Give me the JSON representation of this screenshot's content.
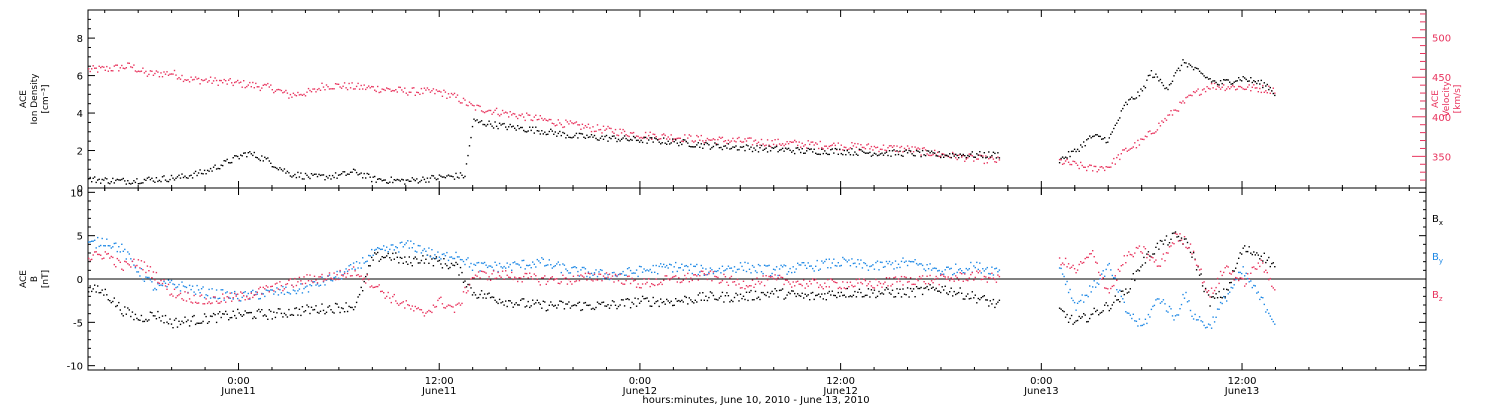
{
  "colors": {
    "axis": "#000000",
    "velocity": "#e8345e",
    "bx": "#000000",
    "by": "#1e88e5",
    "bz": "#e8345e"
  },
  "xlabel": "hours:minutes, June 10, 2010 - June 13, 2010",
  "x_ticks": [
    {
      "hour": 24,
      "time": "0:00",
      "day": "June11"
    },
    {
      "hour": 36,
      "time": "12:00",
      "day": "June11"
    },
    {
      "hour": 48,
      "time": "0:00",
      "day": "June12"
    },
    {
      "hour": 60,
      "time": "12:00",
      "day": "June12"
    },
    {
      "hour": 72,
      "time": "0:00",
      "day": "June13"
    },
    {
      "hour": 84,
      "time": "12:00",
      "day": "June13"
    }
  ],
  "chart_data": [
    {
      "type": "scatter",
      "x_unit": "hours since 2010-06-10 00:00",
      "xlim": [
        15,
        95
      ],
      "left_axis": {
        "label_lines": [
          "ACE",
          "Ion Density",
          "[cm⁻³]"
        ],
        "ylim": [
          0,
          9.5
        ],
        "ticks": [
          0,
          2,
          4,
          6,
          8
        ]
      },
      "right_axis": {
        "label_lines": [
          "ACE",
          "Velocity",
          "[km/s]"
        ],
        "ylim": [
          310,
          535
        ],
        "ticks": [
          350,
          400,
          450,
          500
        ]
      },
      "gap": [
        69.5,
        73.0
      ],
      "series": [
        {
          "key": "density",
          "axis": "left",
          "color_key": "bx",
          "x": [
            15.0,
            17.0,
            19.0,
            20.5,
            22.0,
            23.5,
            24.5,
            25.5,
            27.0,
            28.5,
            30.0,
            31.0,
            32.0,
            34.0,
            36.0,
            37.5,
            38.0,
            40.0,
            42.0,
            44.0,
            46.0,
            48.0,
            50.0,
            52.0,
            54.0,
            56.0,
            58.0,
            60.0,
            62.0,
            64.0,
            66.0,
            68.0,
            69.5,
            73.0,
            74.0,
            75.0,
            76.0,
            77.0,
            78.0,
            78.5,
            79.5,
            80.5,
            81.5,
            82.5,
            84.0,
            85.5,
            86.0
          ],
          "y": [
            0.5,
            0.4,
            0.5,
            0.6,
            0.9,
            1.5,
            1.9,
            1.6,
            0.8,
            0.6,
            0.7,
            0.9,
            0.5,
            0.4,
            0.6,
            0.7,
            3.6,
            3.3,
            3.1,
            2.8,
            2.7,
            2.6,
            2.5,
            2.3,
            2.2,
            2.1,
            2.0,
            2.0,
            1.9,
            1.9,
            1.8,
            1.8,
            1.8,
            1.5,
            2.0,
            2.8,
            2.6,
            4.5,
            5.2,
            6.2,
            5.4,
            6.8,
            6.1,
            5.6,
            5.9,
            5.5,
            5.0
          ]
        },
        {
          "key": "velocity",
          "axis": "right",
          "color_key": "velocity",
          "x": [
            15.0,
            16.5,
            17.5,
            18.5,
            20.0,
            21.0,
            22.0,
            24.0,
            26.0,
            27.0,
            28.5,
            29.0,
            30.0,
            32.0,
            34.0,
            36.0,
            37.0,
            38.0,
            40.0,
            44.0,
            48.0,
            52.0,
            56.0,
            60.0,
            64.0,
            66.0,
            68.0,
            69.5,
            73.0,
            74.0,
            75.0,
            76.0,
            77.0,
            78.0,
            79.0,
            80.0,
            81.0,
            82.0,
            84.0,
            86.0
          ],
          "y": [
            460,
            462,
            465,
            455,
            456,
            448,
            447,
            443,
            437,
            428,
            433,
            440,
            440,
            437,
            433,
            432,
            425,
            413,
            405,
            390,
            378,
            372,
            368,
            364,
            360,
            353,
            348,
            345,
            345,
            340,
            335,
            338,
            358,
            370,
            390,
            410,
            428,
            440,
            438,
            435
          ]
        }
      ]
    },
    {
      "type": "scatter",
      "x_unit": "hours since 2010-06-10 00:00",
      "xlim": [
        15,
        95
      ],
      "ylabel_lines": [
        "ACE",
        "B",
        "[nT]"
      ],
      "ylim": [
        -10.5,
        10.5
      ],
      "ticks": [
        -10,
        -5,
        0,
        5,
        10
      ],
      "zero_line": true,
      "gap": [
        69.5,
        73.0
      ],
      "legend": [
        {
          "label": "Bx",
          "base": "B",
          "sub": "x",
          "color_key": "bx"
        },
        {
          "label": "By",
          "base": "B",
          "sub": "y",
          "color_key": "by"
        },
        {
          "label": "Bz",
          "base": "B",
          "sub": "z",
          "color_key": "bz"
        }
      ],
      "series": [
        {
          "key": "bx",
          "color_key": "bx",
          "x": [
            15.0,
            16.0,
            17.0,
            18.0,
            19.0,
            20.0,
            22.0,
            24.0,
            26.0,
            28.0,
            30.0,
            31.0,
            32.0,
            33.0,
            34.0,
            35.0,
            36.0,
            37.0,
            38.0,
            40.0,
            42.0,
            44.0,
            46.0,
            48.0,
            50.0,
            52.0,
            54.0,
            56.0,
            58.0,
            60.0,
            62.0,
            64.0,
            66.0,
            68.0,
            69.5,
            73.0,
            74.0,
            75.0,
            76.0,
            77.0,
            78.0,
            79.0,
            80.0,
            80.5,
            81.0,
            82.0,
            83.0,
            84.0,
            85.0,
            86.0
          ],
          "y": [
            -1.0,
            -1.5,
            -3.5,
            -4.5,
            -4.0,
            -5.0,
            -4.5,
            -4.0,
            -4.0,
            -3.5,
            -3.2,
            -3.0,
            2.5,
            2.8,
            2.0,
            2.5,
            2.0,
            1.5,
            -1.5,
            -2.5,
            -3.0,
            -3.0,
            -3.0,
            -2.5,
            -2.5,
            -2.0,
            -2.0,
            -1.5,
            -2.0,
            -1.5,
            -1.5,
            -1.5,
            -1.0,
            -2.0,
            -3.0,
            -3.5,
            -5.0,
            -4.0,
            -3.0,
            -1.5,
            2.0,
            4.0,
            5.0,
            4.5,
            3.0,
            -2.5,
            -1.5,
            3.5,
            3.0,
            1.5
          ]
        },
        {
          "key": "by",
          "color_key": "by",
          "x": [
            15.0,
            16.0,
            17.0,
            18.0,
            19.0,
            20.0,
            22.0,
            24.0,
            26.0,
            28.0,
            30.0,
            31.0,
            32.0,
            33.0,
            34.0,
            35.0,
            36.0,
            37.0,
            38.0,
            40.0,
            42.0,
            44.0,
            46.0,
            48.0,
            50.0,
            52.0,
            54.0,
            56.0,
            58.0,
            60.0,
            62.0,
            64.0,
            66.0,
            68.0,
            69.5,
            73.0,
            74.0,
            75.0,
            76.0,
            77.0,
            78.0,
            79.0,
            80.0,
            80.5,
            81.0,
            82.0,
            83.0,
            84.0,
            85.0,
            86.0
          ],
          "y": [
            4.0,
            4.5,
            3.5,
            1.0,
            -1.0,
            -0.5,
            -1.5,
            -2.0,
            -1.5,
            -1.0,
            0.5,
            1.5,
            3.0,
            3.5,
            4.0,
            3.5,
            2.5,
            3.0,
            1.5,
            1.5,
            2.0,
            1.0,
            0.5,
            1.0,
            1.5,
            1.0,
            1.5,
            1.0,
            1.5,
            2.0,
            1.5,
            2.0,
            1.0,
            1.5,
            1.0,
            2.0,
            -3.0,
            -1.0,
            1.5,
            -3.5,
            -5.5,
            -2.0,
            -4.5,
            -1.5,
            -4.0,
            -5.5,
            -2.0,
            1.0,
            -2.0,
            -5.0
          ]
        },
        {
          "key": "bz",
          "color_key": "bz",
          "x": [
            15.0,
            16.0,
            17.0,
            18.0,
            19.0,
            20.0,
            22.0,
            24.0,
            26.0,
            28.0,
            30.0,
            31.0,
            32.0,
            33.0,
            34.0,
            35.0,
            36.0,
            37.0,
            38.0,
            40.0,
            42.0,
            44.0,
            46.0,
            48.0,
            50.0,
            52.0,
            54.0,
            56.0,
            58.0,
            60.0,
            62.0,
            64.0,
            66.0,
            68.0,
            69.5,
            73.0,
            74.0,
            75.0,
            76.0,
            77.0,
            78.0,
            79.0,
            80.0,
            80.5,
            81.0,
            82.0,
            83.0,
            84.0,
            85.0,
            86.0
          ],
          "y": [
            2.5,
            3.0,
            1.5,
            2.0,
            0.5,
            -1.5,
            -2.5,
            -2.0,
            -1.0,
            0.0,
            0.5,
            1.0,
            -0.5,
            -2.0,
            -3.0,
            -4.0,
            -2.5,
            -3.5,
            0.5,
            0.5,
            0.0,
            0.0,
            0.5,
            -0.5,
            0.0,
            0.5,
            -0.5,
            0.0,
            -0.5,
            -0.5,
            -0.5,
            0.0,
            0.0,
            0.5,
            0.0,
            2.5,
            1.0,
            3.0,
            -1.5,
            2.5,
            3.5,
            1.5,
            5.0,
            4.5,
            3.5,
            -2.0,
            1.5,
            -0.5,
            2.0,
            -1.0
          ]
        }
      ]
    }
  ]
}
